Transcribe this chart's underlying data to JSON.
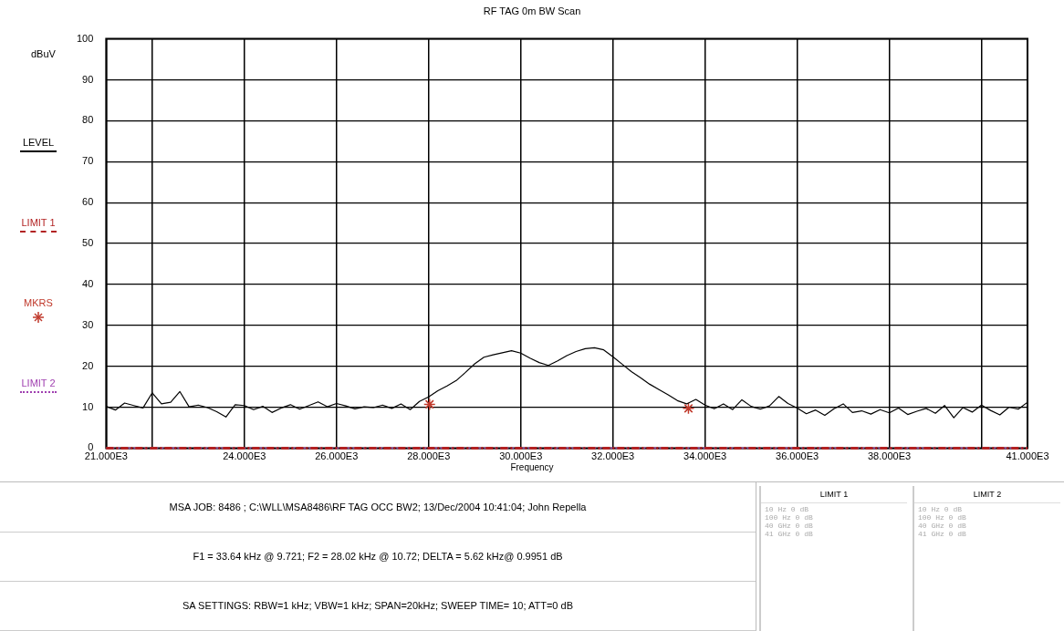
{
  "chart_data": {
    "type": "line",
    "title": "RF TAG 0m  BW Scan",
    "xlabel": "Frequency",
    "ylabel": "dBuV",
    "xlim": [
      21000,
      41000
    ],
    "xticks": [
      {
        "value": 21000,
        "label": "21.000E3"
      },
      {
        "value": 22000,
        "label": null
      },
      {
        "value": 24000,
        "label": "24.000E3"
      },
      {
        "value": 26000,
        "label": "26.000E3"
      },
      {
        "value": 28000,
        "label": "28.000E3"
      },
      {
        "value": 30000,
        "label": "30.000E3"
      },
      {
        "value": 32000,
        "label": "32.000E3"
      },
      {
        "value": 34000,
        "label": "34.000E3"
      },
      {
        "value": 36000,
        "label": "36.000E3"
      },
      {
        "value": 38000,
        "label": "38.000E3"
      },
      {
        "value": 40000,
        "label": null
      },
      {
        "value": 41000,
        "label": "41.000E3"
      }
    ],
    "ylim": [
      0,
      100
    ],
    "yticks": [
      0,
      10,
      20,
      30,
      40,
      50,
      60,
      70,
      80,
      90,
      100
    ],
    "grid": true,
    "legend": "left",
    "series": [
      {
        "name": "LEVEL",
        "color": "#000000",
        "marker": "none",
        "line_style": "solid",
        "x": [
          21000,
          21200,
          21400,
          21600,
          21800,
          22000,
          22200,
          22400,
          22600,
          22800,
          23000,
          23200,
          23400,
          23600,
          23800,
          24000,
          24200,
          24400,
          24600,
          24800,
          25000,
          25200,
          25400,
          25600,
          25800,
          26000,
          26200,
          26400,
          26600,
          26800,
          27000,
          27200,
          27400,
          27600,
          27800,
          28000,
          28200,
          28400,
          28600,
          28800,
          29000,
          29200,
          29400,
          29600,
          29800,
          30000,
          30200,
          30400,
          30600,
          30800,
          31000,
          31200,
          31400,
          31600,
          31800,
          32000,
          32200,
          32400,
          32600,
          32800,
          33000,
          33200,
          33400,
          33600,
          33800,
          34000,
          34200,
          34400,
          34600,
          34800,
          35000,
          35200,
          35400,
          35600,
          35800,
          36000,
          36200,
          36400,
          36600,
          36800,
          37000,
          37200,
          37400,
          37600,
          37800,
          38000,
          38200,
          38400,
          38600,
          38800,
          39000,
          39200,
          39400,
          39600,
          39800,
          40000,
          40200,
          40400,
          40600,
          40800,
          41000
        ],
        "values": [
          10.2,
          9.3,
          11.0,
          10.4,
          9.8,
          13.5,
          10.8,
          11.2,
          13.8,
          10.1,
          10.5,
          9.9,
          8.9,
          7.6,
          10.6,
          10.4,
          9.4,
          10.2,
          8.7,
          9.8,
          10.6,
          9.5,
          10.4,
          11.3,
          10.1,
          10.9,
          10.3,
          9.6,
          10.1,
          9.9,
          10.5,
          9.7,
          10.8,
          9.4,
          11.4,
          12.5,
          14.0,
          15.2,
          16.5,
          18.5,
          20.6,
          22.2,
          22.8,
          23.3,
          23.8,
          23.2,
          22.0,
          20.9,
          20.2,
          21.3,
          22.6,
          23.6,
          24.3,
          24.5,
          24.0,
          22.3,
          20.5,
          18.7,
          17.2,
          15.6,
          14.3,
          13.0,
          11.6,
          10.8,
          11.9,
          10.5,
          9.6,
          10.8,
          9.4,
          11.8,
          10.2,
          9.5,
          10.3,
          12.6,
          10.9,
          9.8,
          8.4,
          9.3,
          8.0,
          9.6,
          10.8,
          8.7,
          9.1,
          8.3,
          9.4,
          8.6,
          9.8,
          8.2,
          9.0,
          9.7,
          8.5,
          10.4,
          7.4,
          9.9,
          8.8,
          10.5,
          9.2,
          8.1,
          10.0,
          9.5,
          11.2
        ]
      },
      {
        "name": "LIMIT 1",
        "color": "#b22222",
        "marker": "none",
        "line_style": "dashed",
        "x": [
          21000,
          41000
        ],
        "values": [
          0,
          0
        ]
      },
      {
        "name": "MKRS",
        "type": "scatter",
        "color": "#c0392b",
        "marker": "cross",
        "x": [
          33640,
          28020
        ],
        "values": [
          9.7,
          10.7
        ]
      },
      {
        "name": "LIMIT 2",
        "color": "#a040b0",
        "marker": "none",
        "line_style": "dotted",
        "x": [
          21000,
          41000
        ],
        "values": [
          0,
          0
        ]
      }
    ],
    "annotations": [
      "MSA  JOB: 8486   ;  C:\\WLL\\MSA8486\\RF TAG OCC BW2;   13/Dec/2004 10:41:04; John Repella",
      "F1 = 33.64 kHz @ 9.721;   F2 = 28.02 kHz @ 10.72;   DELTA = 5.62 kHz@ 0.9951 dB",
      "SA SETTINGS: RBW=1 kHz; VBW=1 kHz; SPAN=20kHz; SWEEP TIME= 10; ATT=0 dB",
      "LIMIT 1",
      "10   Hz   0  dB",
      "100   Hz   0  dB",
      "40   GHz   0  dB",
      "41   GHz   0  dB",
      "LIMIT 2",
      "10   Hz   0  dB",
      "100   Hz   0  dB",
      "40   GHz   0  dB",
      "41   GHz   0  dB"
    ]
  }
}
